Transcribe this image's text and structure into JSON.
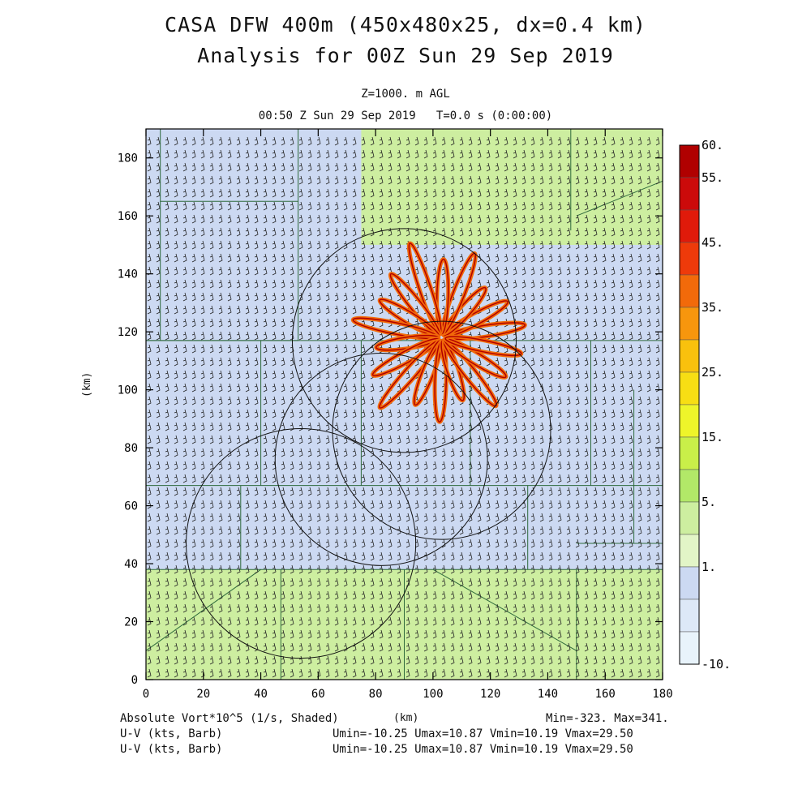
{
  "title": "CASA DFW 400m (450x480x25, dx=0.4 km)",
  "subtitle": "Analysis for 00Z Sun 29 Sep 2019",
  "level_label": "Z=1000. m AGL",
  "time_label": "00:50 Z Sun 29 Sep 2019   T=0.0 s (0:00:00)",
  "footer": {
    "field1": "Absolute Vort*10^5 (1/s, Shaded)",
    "field2": "U-V (kts, Barb)",
    "field3": "U-V (kts, Barb)",
    "minmax": "Min=-323. Max=341.",
    "uv_range1": "Umin=-10.25 Umax=10.87 Vmin=10.19 Vmax=29.50",
    "uv_range2": "Umin=-10.25 Umax=10.87 Vmin=10.19 Vmax=29.50"
  },
  "chart_data": {
    "type": "heatmap",
    "xlabel": "(km)",
    "ylabel": "(km)",
    "xlim": [
      0,
      180
    ],
    "ylim": [
      0,
      190
    ],
    "x_ticks": [
      0,
      20,
      40,
      60,
      80,
      100,
      120,
      140,
      160,
      180
    ],
    "y_ticks": [
      0,
      20,
      40,
      60,
      80,
      100,
      120,
      140,
      160,
      180
    ],
    "colorbar": {
      "labels": [
        "60.",
        "55.",
        "45.",
        "35.",
        "25.",
        "15.",
        "5.",
        "1.",
        "-10."
      ],
      "colors": [
        "#b00000",
        "#cc0a0a",
        "#e01a0a",
        "#ee3a0a",
        "#f26a0a",
        "#f7960d",
        "#f9c10d",
        "#f7de14",
        "#eef52a",
        "#c9ef49",
        "#b2e868",
        "#cdeea0",
        "#e2f5c7",
        "#ccd9f2",
        "#dde8f7",
        "#e8f3fb"
      ]
    },
    "radar_rings": [
      {
        "cx": 90,
        "cy": 117,
        "r": 39
      },
      {
        "cx": 103,
        "cy": 86,
        "r": 38
      },
      {
        "cx": 82,
        "cy": 76,
        "r": 37
      },
      {
        "cx": 54,
        "cy": 47,
        "r": 40
      }
    ],
    "vorticity_band_center": [
      103,
      118
    ],
    "vorticity_band_lengths_km": [
      28,
      25,
      22,
      30,
      26,
      33,
      27,
      24,
      30,
      22,
      26,
      31,
      24,
      28,
      22,
      29,
      25,
      27
    ],
    "background_regions": [
      {
        "label": "1.",
        "x": [
          0,
          180
        ],
        "y": [
          0,
          190
        ]
      },
      {
        "label": "5.",
        "x": [
          0,
          180
        ],
        "y": [
          0,
          38
        ]
      },
      {
        "label": "5.",
        "x": [
          75,
          180
        ],
        "y": [
          150,
          190
        ]
      }
    ]
  }
}
